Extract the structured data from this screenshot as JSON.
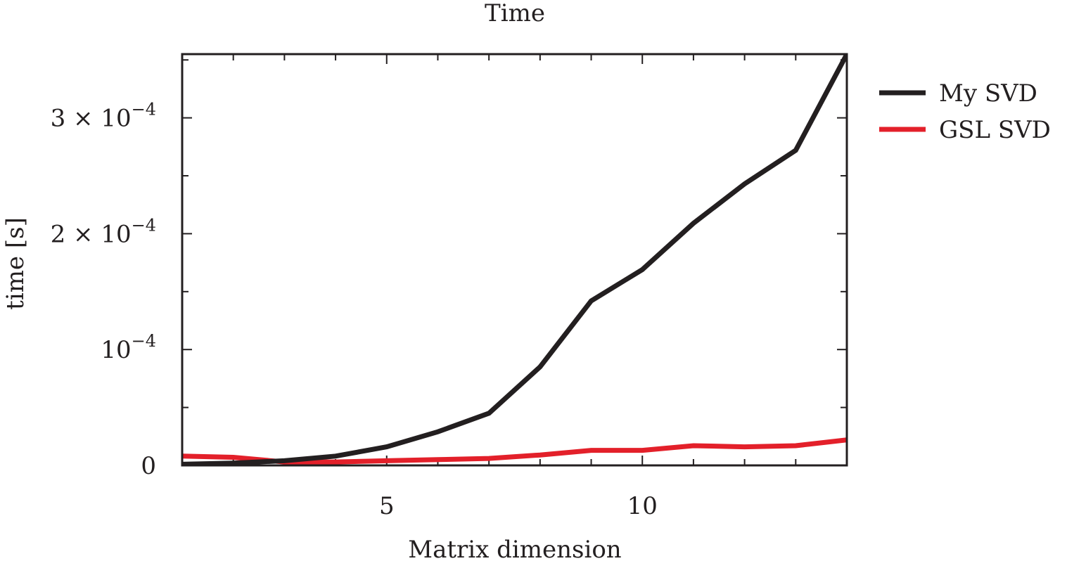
{
  "chart_data": {
    "type": "line",
    "title": "Time",
    "xlabel": "Matrix dimension",
    "ylabel": "time [s]",
    "xlim": [
      1,
      14
    ],
    "ylim": [
      0,
      0.000355
    ],
    "x_ticks": [
      {
        "value": 5,
        "label": "5"
      },
      {
        "value": 10,
        "label": "10"
      }
    ],
    "y_ticks": [
      {
        "value": 0,
        "mantissa": "0",
        "exponent": ""
      },
      {
        "value": 0.0001,
        "mantissa": "10",
        "exponent": "−4"
      },
      {
        "value": 0.0002,
        "mantissa": "2 × 10",
        "exponent": "−4"
      },
      {
        "value": 0.0003,
        "mantissa": "3 × 10",
        "exponent": "−4"
      }
    ],
    "legend_position": "outside-right-top",
    "grid": false,
    "x": [
      1,
      2,
      3,
      4,
      5,
      6,
      7,
      8,
      9,
      10,
      11,
      12,
      13,
      14
    ],
    "series": [
      {
        "name": "My SVD",
        "color": "#231f20",
        "values": [
          1e-06,
          2e-06,
          4e-06,
          8e-06,
          1.6e-05,
          2.9e-05,
          4.5e-05,
          8.5e-05,
          0.000142,
          0.000169,
          0.000209,
          0.000243,
          0.000272,
          0.000355
        ]
      },
      {
        "name": "GSL SVD",
        "color": "#e3202a",
        "values": [
          8e-06,
          7e-06,
          3e-06,
          3e-06,
          4e-06,
          5e-06,
          6e-06,
          9e-06,
          1.3e-05,
          1.3e-05,
          1.7e-05,
          1.6e-05,
          1.7e-05,
          2.2e-05
        ]
      }
    ]
  }
}
